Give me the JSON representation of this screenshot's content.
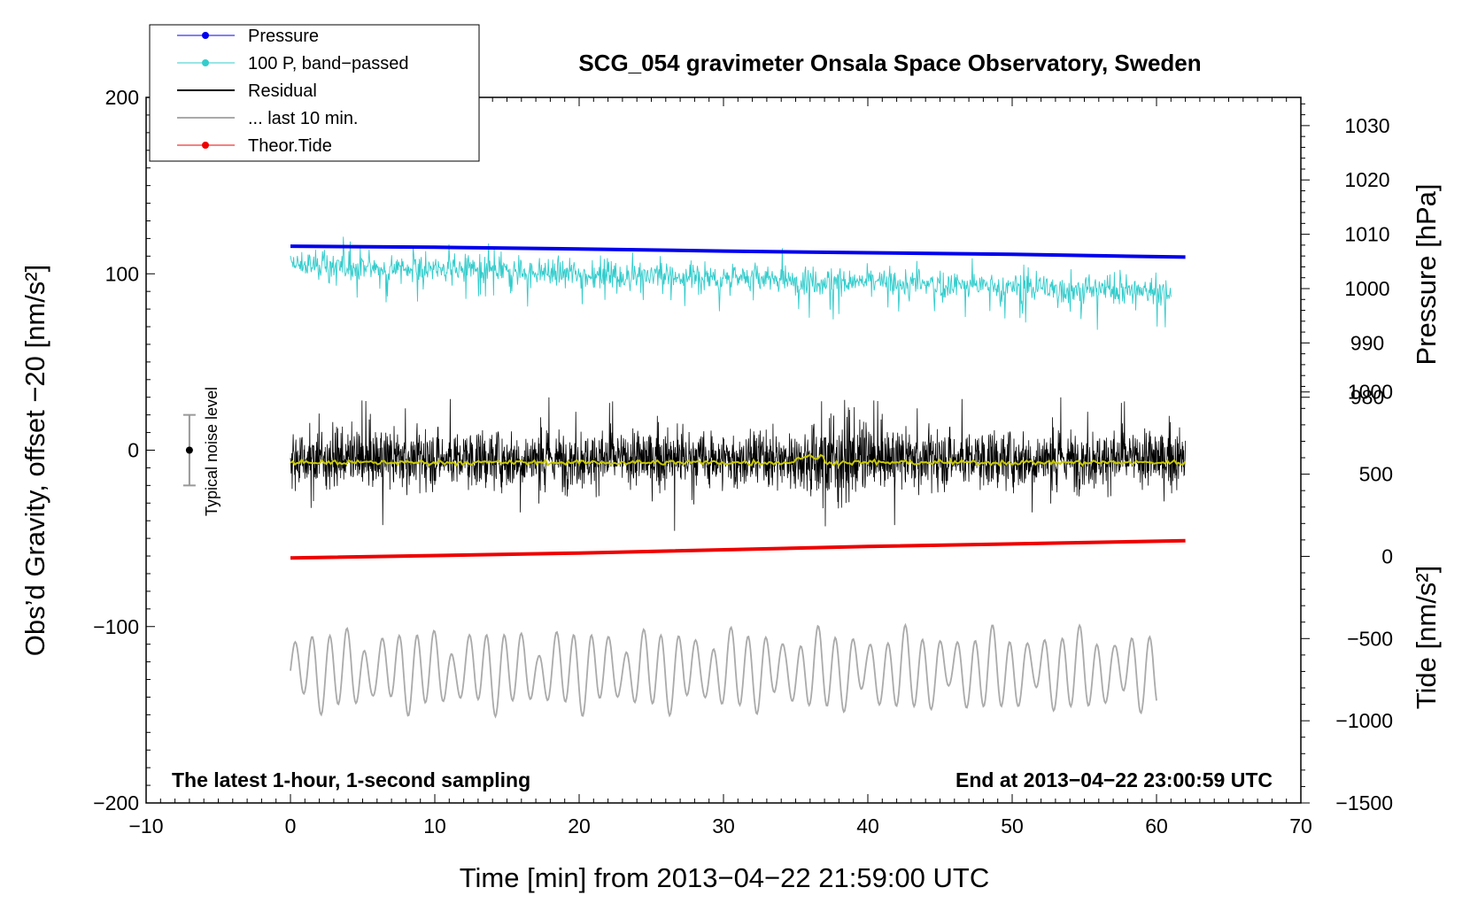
{
  "chart_data": {
    "type": "line",
    "title": "SCG_054 gravimeter Onsala Space Observatory, Sweden",
    "xlabel": "Time [min] from 2013−04−22 21:59:00 UTC",
    "ylabel_left": "Obs’d Gravity, offset −20 [nm/s²]",
    "ylabel_pressure": "Pressure [hPa]",
    "ylabel_tide": "Tide [nm/s²]",
    "xlim": [
      -10,
      70
    ],
    "ylim_left": [
      -200,
      200
    ],
    "x_ticks": [
      "−10",
      "0",
      "10",
      "20",
      "30",
      "40",
      "50",
      "60",
      "70"
    ],
    "y_ticks_left": [
      "200",
      "100",
      "0",
      "−100",
      "−200"
    ],
    "pressure_ticks": [
      "1030",
      "1020",
      "1010",
      "1000",
      "990",
      "980"
    ],
    "tide_ticks": [
      "1000",
      "500",
      "0",
      "−500",
      "−1000",
      "−1500"
    ],
    "note_left": "The latest 1-hour, 1-second sampling",
    "note_right": "End at 2013−04−22 23:00:59 UTC",
    "noise_label": "Typical noise level",
    "noise_bar": {
      "x": -7,
      "y_center": 0,
      "y_low": -20,
      "y_high": 20
    },
    "legend": [
      {
        "label": "Pressure",
        "color": "#0000ee",
        "marker": true
      },
      {
        "label": "100 P, band−passed",
        "color": "#33cccc",
        "marker": true
      },
      {
        "label": "Residual",
        "color": "#000000",
        "marker": false
      },
      {
        "label": "... last 10 min.",
        "color": "#aaaaaa",
        "marker": false
      },
      {
        "label": "Theor.Tide",
        "color": "#ee0000",
        "marker": true
      }
    ],
    "series": [
      {
        "name": "Pressure",
        "color": "#0000ee",
        "axis": "pressure_hPa",
        "x": [
          0,
          10,
          20,
          30,
          40,
          50,
          62
        ],
        "values": [
          1007.8,
          1007.6,
          1007.3,
          1006.9,
          1006.6,
          1006.3,
          1005.8
        ]
      },
      {
        "name": "100 P, band-passed",
        "color": "#33cccc",
        "axis": "left_offset",
        "x_range": [
          0,
          61
        ],
        "center": 105,
        "center_end": 90,
        "amplitude": 12
      },
      {
        "name": "Residual",
        "color": "#000000",
        "axis": "left",
        "x_range": [
          0,
          62
        ],
        "center": -5,
        "amplitude": 18
      },
      {
        "name": "Residual smoothed",
        "color": "#c8c800",
        "axis": "left",
        "x_range": [
          0,
          62
        ],
        "center": -7,
        "amplitude": 2
      },
      {
        "name": "... last 10 min.",
        "color": "#aaaaaa",
        "axis": "left_offset",
        "x_range": [
          0,
          60
        ],
        "center": -125,
        "amplitude": 22
      },
      {
        "name": "Theor.Tide",
        "color": "#ee0000",
        "axis": "tide",
        "x": [
          0,
          20,
          40,
          62
        ],
        "values": [
          -10,
          20,
          60,
          95
        ]
      }
    ],
    "axis_maps": {
      "pressure_hPa": {
        "from": [
          980,
          1030
        ],
        "to_left": [
          30,
          184
        ]
      },
      "tide": {
        "from": [
          -1500,
          1000
        ],
        "to_left": [
          -200,
          33
        ]
      }
    }
  }
}
